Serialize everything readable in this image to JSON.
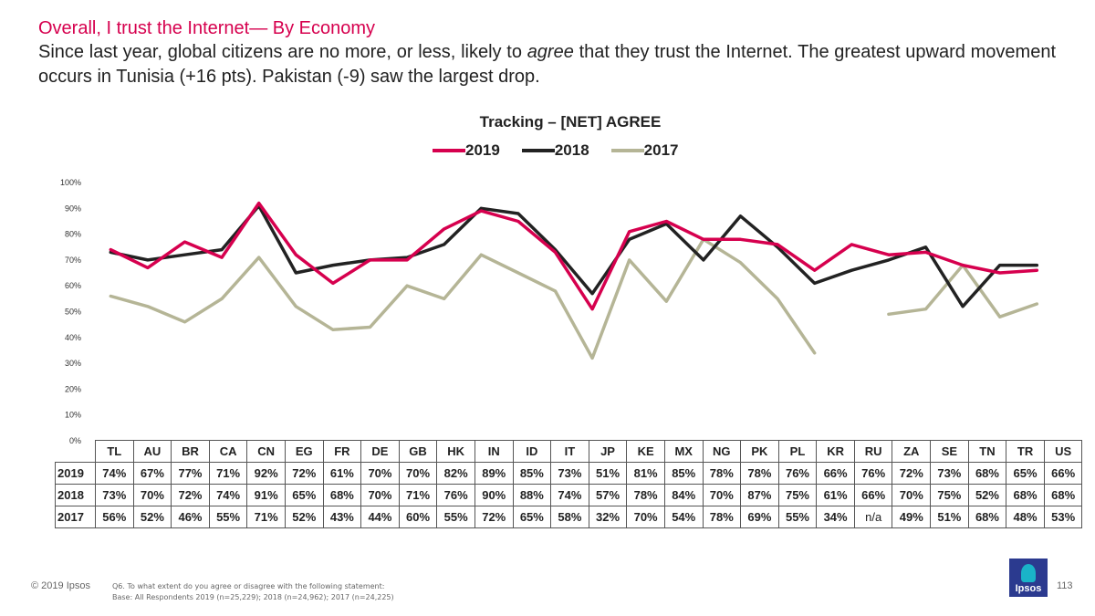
{
  "slide": {
    "title": "Overall, I trust the Internet— By Economy",
    "subtitle_before": "Since last year, global citizens are no more, or less, likely to ",
    "subtitle_em": "agree",
    "subtitle_after": " that they trust the Internet. The greatest upward movement occurs in Tunisia (+16 pts). Pakistan (-9) saw the largest drop.",
    "footer_copyright": "© 2019 Ipsos",
    "footer_question": "Q6. To what extent do you agree or disagree with the following statement:",
    "footer_base": "Base: All Respondents 2019 (n=25,229);  2018 (n=24,962); 2017 (n=24,225)",
    "logo_text": "Ipsos",
    "page_number": "113"
  },
  "chart_data": {
    "type": "line",
    "title": "Tracking – [NET] AGREE",
    "categories": [
      "TL",
      "AU",
      "BR",
      "CA",
      "CN",
      "EG",
      "FR",
      "DE",
      "GB",
      "HK",
      "IN",
      "ID",
      "IT",
      "JP",
      "KE",
      "MX",
      "NG",
      "PK",
      "PL",
      "KR",
      "RU",
      "ZA",
      "SE",
      "TN",
      "TR",
      "US"
    ],
    "ylim": [
      0,
      100
    ],
    "y_ticks": [
      "0%",
      "10%",
      "20%",
      "30%",
      "40%",
      "50%",
      "60%",
      "70%",
      "80%",
      "90%",
      "100%"
    ],
    "legend_position": "top-center",
    "grid": false,
    "series": [
      {
        "name": "2019",
        "color": "#d6004e",
        "values": [
          74,
          67,
          77,
          71,
          92,
          72,
          61,
          70,
          70,
          82,
          89,
          85,
          73,
          51,
          81,
          85,
          78,
          78,
          76,
          66,
          76,
          72,
          73,
          68,
          65,
          66
        ],
        "labels": [
          "74%",
          "67%",
          "77%",
          "71%",
          "92%",
          "72%",
          "61%",
          "70%",
          "70%",
          "82%",
          "89%",
          "85%",
          "73%",
          "51%",
          "81%",
          "85%",
          "78%",
          "78%",
          "76%",
          "66%",
          "76%",
          "72%",
          "73%",
          "68%",
          "65%",
          "66%"
        ]
      },
      {
        "name": "2018",
        "color": "#222222",
        "values": [
          73,
          70,
          72,
          74,
          91,
          65,
          68,
          70,
          71,
          76,
          90,
          88,
          74,
          57,
          78,
          84,
          70,
          87,
          75,
          61,
          66,
          70,
          75,
          52,
          68,
          68
        ],
        "labels": [
          "73%",
          "70%",
          "72%",
          "74%",
          "91%",
          "65%",
          "68%",
          "70%",
          "71%",
          "76%",
          "90%",
          "88%",
          "74%",
          "57%",
          "78%",
          "84%",
          "70%",
          "87%",
          "75%",
          "61%",
          "66%",
          "70%",
          "75%",
          "52%",
          "68%",
          "68%"
        ]
      },
      {
        "name": "2017",
        "color": "#b5b596",
        "values": [
          56,
          52,
          46,
          55,
          71,
          52,
          43,
          44,
          60,
          55,
          72,
          65,
          58,
          32,
          70,
          54,
          78,
          69,
          55,
          34,
          null,
          49,
          51,
          68,
          48,
          53
        ],
        "labels": [
          "56%",
          "52%",
          "46%",
          "55%",
          "71%",
          "52%",
          "43%",
          "44%",
          "60%",
          "55%",
          "72%",
          "65%",
          "58%",
          "32%",
          "70%",
          "54%",
          "78%",
          "69%",
          "55%",
          "34%",
          "n/a",
          "49%",
          "51%",
          "68%",
          "48%",
          "53%"
        ]
      }
    ]
  }
}
